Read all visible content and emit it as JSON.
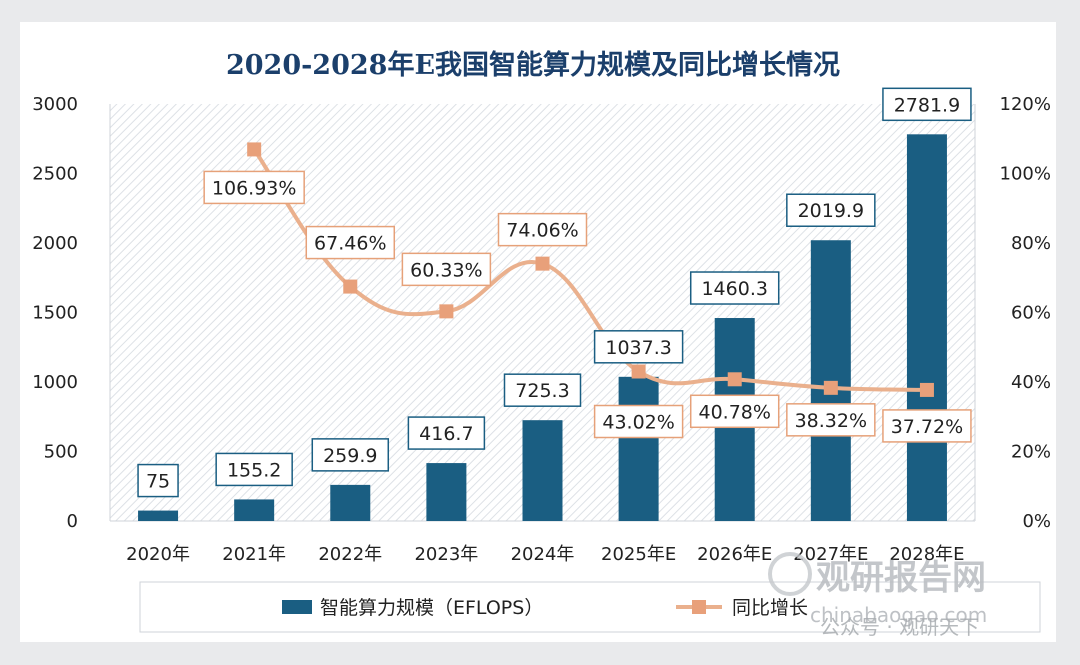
{
  "chart_data": {
    "type": "bar",
    "title": "2020-2028年E我国智能算力规模及同比增长情况",
    "categories": [
      "2020年",
      "2021年",
      "2022年",
      "2023年",
      "2024年",
      "2025年E",
      "2026年E",
      "2027年E",
      "2028年E"
    ],
    "series": [
      {
        "name": "智能算力规模（EFLOPS）",
        "type": "bar",
        "axis": "left",
        "values": [
          75,
          155.2,
          259.9,
          416.7,
          725.3,
          1037.3,
          1460.3,
          2019.9,
          2781.9
        ],
        "labels": [
          "75",
          "155.2",
          "259.9",
          "416.7",
          "725.3",
          "1037.3",
          "1460.3",
          "2019.9",
          "2781.9"
        ]
      },
      {
        "name": "同比增长",
        "type": "line",
        "axis": "right",
        "values": [
          null,
          106.93,
          67.46,
          60.33,
          74.06,
          43.02,
          40.78,
          38.32,
          37.72
        ],
        "labels": [
          "",
          "106.93%",
          "67.46%",
          "60.33%",
          "74.06%",
          "43.02%",
          "40.78%",
          "38.32%",
          "37.72%"
        ]
      }
    ],
    "y_left": {
      "ticks": [
        "0",
        "500",
        "1000",
        "1500",
        "2000",
        "2500",
        "3000"
      ],
      "range": [
        0,
        3000
      ]
    },
    "y_right": {
      "ticks": [
        "0%",
        "20%",
        "40%",
        "60%",
        "80%",
        "100%",
        "120%"
      ],
      "range": [
        0,
        120
      ]
    },
    "legend_position": "bottom",
    "colors": {
      "bar": "#1a5e82",
      "line": "#eab08d",
      "marker": "#e8a07a",
      "label_border_bar": "#1a5e82",
      "label_border_line": "#e6a179"
    }
  },
  "watermark": {
    "brand": "观研报告网",
    "site": "chinabaogao.com",
    "account": "公众号 · 观研天下"
  }
}
